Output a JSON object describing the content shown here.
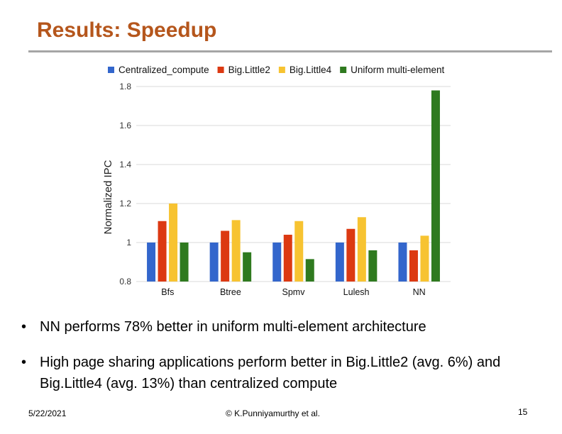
{
  "slide": {
    "title": "Results: Speedup",
    "bullets": [
      "NN performs 78% better  in uniform multi-element architecture",
      "High page sharing applications perform better in Big.Little2 (avg. 6%) and Big.Little4 (avg. 13%) than centralized compute"
    ],
    "footer": {
      "date": "5/22/2021",
      "credit": "© K.Punniyamurthy et al.",
      "page": "15"
    }
  },
  "chart_data": {
    "type": "bar",
    "title": "",
    "xlabel": "",
    "ylabel": "Normalized IPC",
    "ylim": [
      0.8,
      1.8
    ],
    "yticks": [
      "0.8",
      "1",
      "1.2",
      "1.4",
      "1.6",
      "1.8"
    ],
    "grid": true,
    "legend_position": "top",
    "categories": [
      "Bfs",
      "Btree",
      "Spmv",
      "Lulesh",
      "NN"
    ],
    "series": [
      {
        "name": "Centralized_compute",
        "color": "#3366cc",
        "values": [
          1.0,
          1.0,
          1.0,
          1.0,
          1.0
        ]
      },
      {
        "name": "Big.Little2",
        "color": "#dc3912",
        "values": [
          1.11,
          1.06,
          1.04,
          1.07,
          0.96
        ]
      },
      {
        "name": "Big.Little4",
        "color": "#f7c331",
        "values": [
          1.2,
          1.115,
          1.11,
          1.13,
          1.035
        ]
      },
      {
        "name": "Uniform multi-element",
        "color": "#2f7a1f",
        "values": [
          1.0,
          0.95,
          0.915,
          0.96,
          1.78
        ]
      }
    ]
  }
}
